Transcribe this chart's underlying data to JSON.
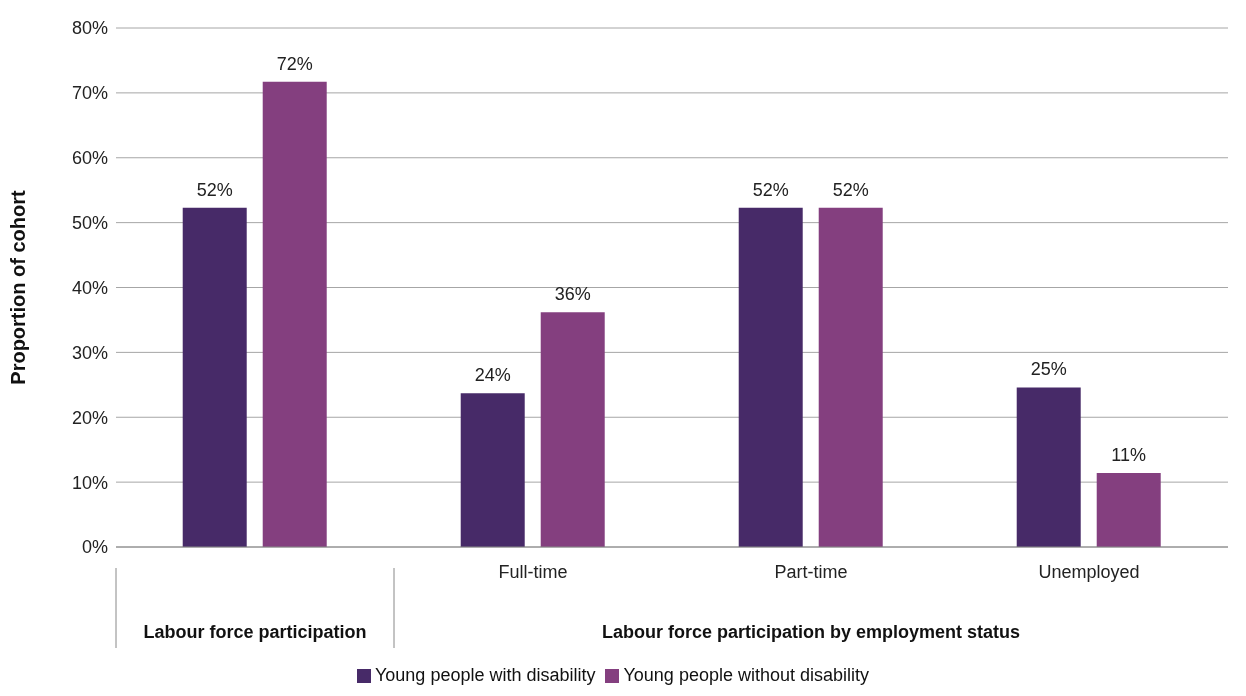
{
  "chart_data": {
    "type": "bar",
    "ylabel": "Proportion of cohort",
    "categories": [
      null,
      "Full-time",
      "Part-time",
      "Unemployed"
    ],
    "annotations": [
      "Labour force participation",
      "Labour force participation by employment status"
    ],
    "series": [
      {
        "name": "Young people with disability",
        "color": "#472a68",
        "values": [
          52.3,
          23.7,
          52.3,
          24.6
        ],
        "value_labels": [
          "52%",
          "24%",
          "52%",
          "25%"
        ]
      },
      {
        "name": "Young people without disability",
        "color": "#843f7f",
        "values": [
          71.7,
          36.2,
          52.3,
          11.4
        ],
        "value_labels": [
          "72%",
          "36%",
          "52%",
          "11%"
        ]
      }
    ],
    "ylim": [
      0,
      80
    ],
    "yticks": [
      {
        "value": 0,
        "label": "0%"
      },
      {
        "value": 10,
        "label": "10%"
      },
      {
        "value": 20,
        "label": "20%"
      },
      {
        "value": 30,
        "label": "30%"
      },
      {
        "value": 40,
        "label": "40%"
      },
      {
        "value": 50,
        "label": "50%"
      },
      {
        "value": 60,
        "label": "60%"
      },
      {
        "value": 70,
        "label": "70%"
      },
      {
        "value": 80,
        "label": "80%"
      }
    ],
    "grid": "y",
    "legend": "bottom"
  }
}
